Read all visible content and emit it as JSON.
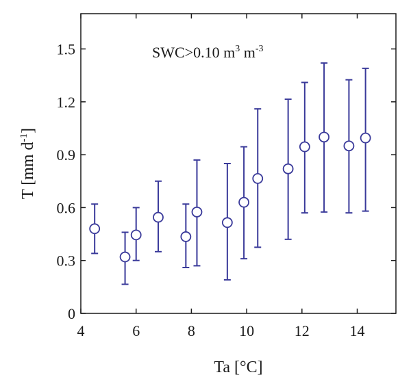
{
  "chart_data": {
    "type": "scatter",
    "title": "",
    "xlabel": "Ta [°C]",
    "ylabel": {
      "main": "T [mm d",
      "sup": "-1",
      "close": "]"
    },
    "annotation": {
      "text": "SWC>0.10 m",
      "sup1": "3",
      "mid": " m",
      "sup2": "-3"
    },
    "xlim": [
      4,
      15.4
    ],
    "ylim": [
      0,
      1.7
    ],
    "xticks": [
      4,
      6,
      8,
      10,
      12,
      14
    ],
    "yticks": [
      0,
      0.3,
      0.6,
      0.9,
      1.2,
      1.5
    ],
    "xtick_labels": [
      "4",
      "6",
      "8",
      "10",
      "12",
      "14"
    ],
    "ytick_labels": [
      "0",
      "0.3",
      "0.6",
      "0.9",
      "1.2",
      "1.5"
    ],
    "grid": false,
    "marker": "open-circle",
    "color": "#3a3a9a",
    "points": [
      {
        "x": 4.5,
        "y": 0.48,
        "lo": 0.34,
        "hi": 0.62
      },
      {
        "x": 5.6,
        "y": 0.32,
        "lo": 0.165,
        "hi": 0.46
      },
      {
        "x": 6.0,
        "y": 0.445,
        "lo": 0.3,
        "hi": 0.6
      },
      {
        "x": 6.8,
        "y": 0.545,
        "lo": 0.35,
        "hi": 0.75
      },
      {
        "x": 7.8,
        "y": 0.435,
        "lo": 0.26,
        "hi": 0.62
      },
      {
        "x": 8.2,
        "y": 0.575,
        "lo": 0.27,
        "hi": 0.87
      },
      {
        "x": 9.3,
        "y": 0.515,
        "lo": 0.19,
        "hi": 0.85
      },
      {
        "x": 9.9,
        "y": 0.63,
        "lo": 0.31,
        "hi": 0.945
      },
      {
        "x": 10.4,
        "y": 0.765,
        "lo": 0.375,
        "hi": 1.16
      },
      {
        "x": 11.5,
        "y": 0.82,
        "lo": 0.42,
        "hi": 1.215
      },
      {
        "x": 12.1,
        "y": 0.945,
        "lo": 0.57,
        "hi": 1.31
      },
      {
        "x": 12.8,
        "y": 1.0,
        "lo": 0.575,
        "hi": 1.42
      },
      {
        "x": 13.7,
        "y": 0.95,
        "lo": 0.57,
        "hi": 1.325
      },
      {
        "x": 14.3,
        "y": 0.995,
        "lo": 0.58,
        "hi": 1.39
      }
    ]
  }
}
